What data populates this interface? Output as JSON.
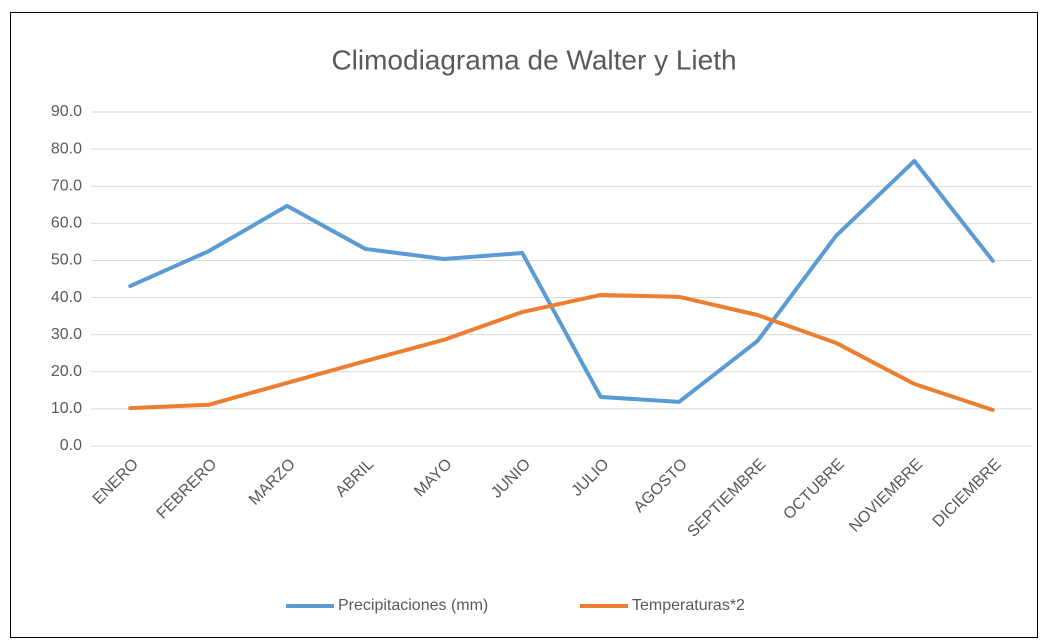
{
  "chart_data": {
    "type": "line",
    "title": "Climodiagrama de Walter y Lieth",
    "categories": [
      "ENERO",
      "FEBRERO",
      "MARZO",
      "ABRIL",
      "MAYO",
      "JUNIO",
      "JULIO",
      "AGOSTO",
      "SEPTIEMBRE",
      "OCTUBRE",
      "NOVIEMBRE",
      "DICIEMBRE"
    ],
    "series": [
      {
        "name": "Precipitaciones (mm)",
        "color": "#5b9bd5",
        "values": [
          43.1,
          52.5,
          64.7,
          53.1,
          50.4,
          52.0,
          13.2,
          11.9,
          28.3,
          56.6,
          76.8,
          49.9
        ]
      },
      {
        "name": "Temperaturas*2",
        "color": "#ed7d31",
        "values": [
          10.2,
          11.1,
          17.0,
          22.9,
          28.6,
          36.1,
          40.7,
          40.2,
          35.3,
          27.8,
          16.7,
          9.7
        ]
      }
    ],
    "ylim": [
      0,
      90
    ],
    "yticks": [
      {
        "value": 0,
        "label": "0.0"
      },
      {
        "value": 10,
        "label": "10.0"
      },
      {
        "value": 20,
        "label": "20.0"
      },
      {
        "value": 30,
        "label": "30.0"
      },
      {
        "value": 40,
        "label": "40.0"
      },
      {
        "value": 50,
        "label": "50.0"
      },
      {
        "value": 60,
        "label": "60.0"
      },
      {
        "value": 70,
        "label": "70.0"
      },
      {
        "value": 80,
        "label": "80.0"
      },
      {
        "value": 90,
        "label": "90.0"
      }
    ],
    "grid": true,
    "legend": "bottom"
  }
}
